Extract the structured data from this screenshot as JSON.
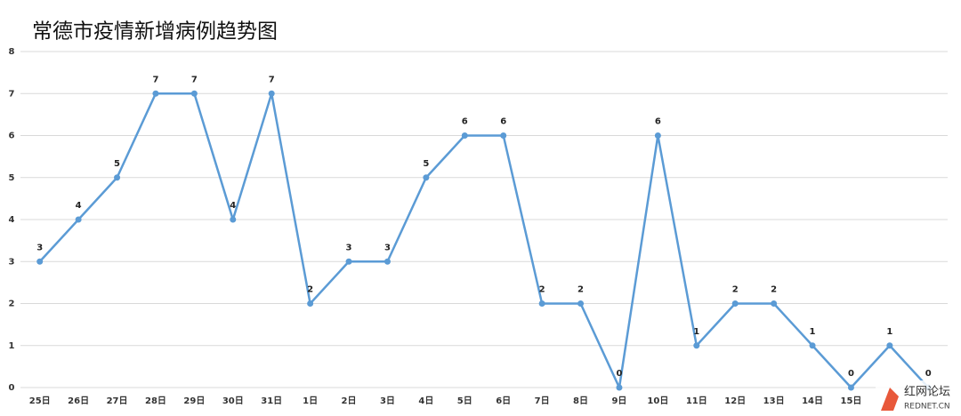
{
  "chart_data": {
    "type": "line",
    "title": "常德市疫情新增病例趋势图",
    "categories": [
      "25日",
      "26日",
      "27日",
      "28日",
      "29日",
      "30日",
      "31日",
      "1日",
      "2日",
      "3日",
      "4日",
      "5日",
      "6日",
      "7日",
      "8日",
      "9日",
      "10日",
      "11日",
      "12日",
      "13日",
      "14日",
      "15日",
      null,
      null
    ],
    "values": [
      3,
      4,
      5,
      7,
      7,
      4,
      7,
      2,
      3,
      3,
      5,
      6,
      6,
      2,
      2,
      0,
      6,
      1,
      2,
      2,
      1,
      0,
      1,
      0
    ],
    "color": "#5b9bd5",
    "ylim": [
      0,
      8
    ],
    "yticks": [
      0,
      1,
      2,
      3,
      4,
      5,
      6,
      7,
      8
    ],
    "grid": true
  },
  "watermark": {
    "text": "红网论坛",
    "subtext": "REDNET.CN"
  }
}
